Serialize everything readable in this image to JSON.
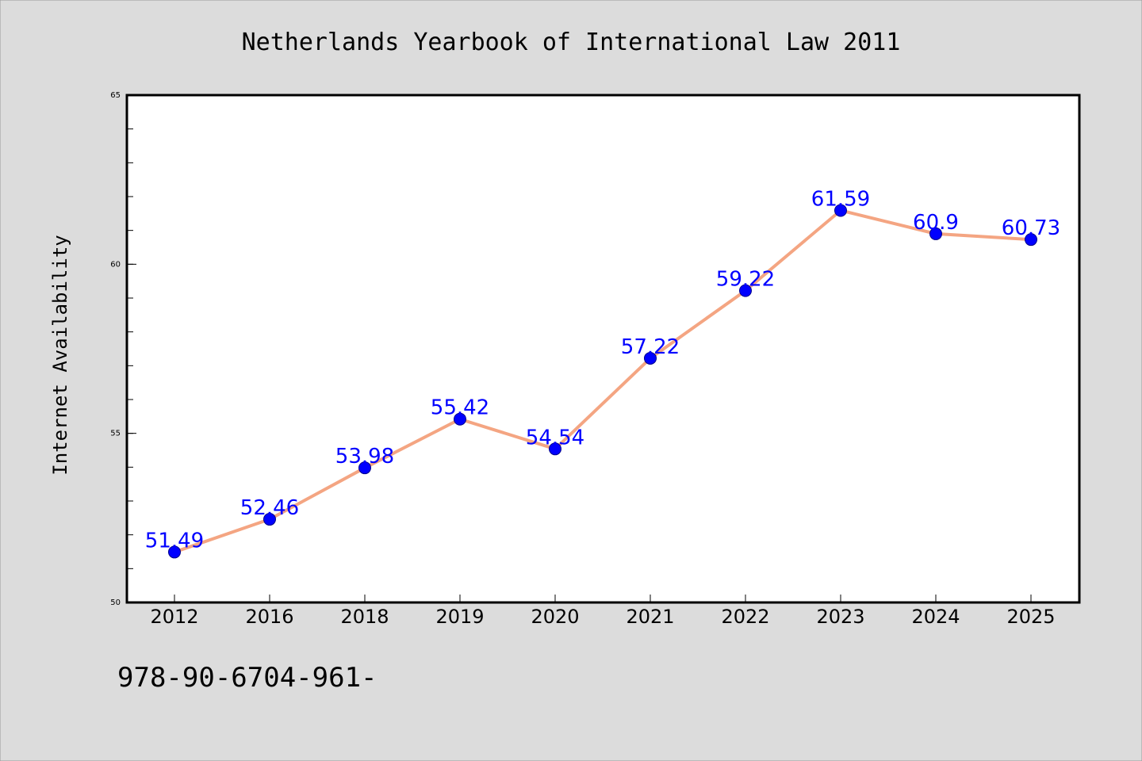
{
  "footer_text": "978-90-6704-961-",
  "chart_data": {
    "type": "line",
    "title": "Netherlands Yearbook of International Law 2011",
    "xlabel": "",
    "ylabel": "Internet Availability",
    "categories": [
      "2012",
      "2016",
      "2018",
      "2019",
      "2020",
      "2021",
      "2022",
      "2023",
      "2024",
      "2025"
    ],
    "values": [
      51.49,
      52.46,
      53.98,
      55.42,
      54.54,
      57.22,
      59.22,
      61.59,
      60.9,
      60.73
    ],
    "data_labels": [
      "51.49",
      "52.46",
      "53.98",
      "55.42",
      "54.54",
      "57.22",
      "59.22",
      "61.59",
      "60.9",
      "60.73"
    ],
    "ylim": [
      50,
      65
    ],
    "yticks": [
      50,
      55,
      60,
      65
    ],
    "ytick_labels": [
      "50",
      "55",
      "60",
      "65"
    ],
    "y_minor_step": 1,
    "grid": false,
    "legend": "none",
    "line_color": "#f4a582",
    "marker_color": "#0000ff",
    "label_color": "#0000ff",
    "background_color": "#dcdcdc",
    "plot_background_color": "#ffffff"
  }
}
